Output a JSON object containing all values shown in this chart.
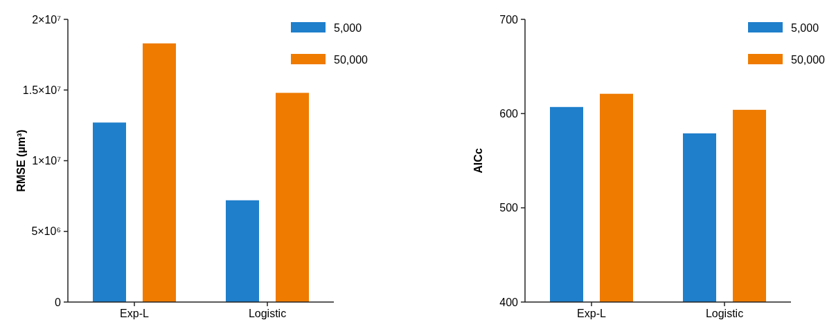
{
  "chart_data": [
    {
      "type": "bar",
      "ylabel": "RMSE (µm³)",
      "categories": [
        "Exp-L",
        "Logistic"
      ],
      "series": [
        {
          "name": "5,000",
          "color": "#1f7fcb",
          "values": [
            12700000,
            7200000
          ]
        },
        {
          "name": "50,000",
          "color": "#ef7b00",
          "values": [
            18300000,
            14800000
          ]
        }
      ],
      "ylim": [
        0,
        20000000
      ],
      "yticks": [
        0,
        {
          "value": 5000000,
          "label": "5×10⁶"
        },
        {
          "value": 10000000,
          "label": "1×10⁷"
        },
        {
          "value": 15000000,
          "label": "1.5×10⁷"
        },
        {
          "value": 20000000,
          "label": "2×10⁷"
        }
      ],
      "legend": "top right",
      "grid": false
    },
    {
      "type": "bar",
      "ylabel": "AICc",
      "categories": [
        "Exp-L",
        "Logistic"
      ],
      "series": [
        {
          "name": "5,000",
          "color": "#1f7fcb",
          "values": [
            607,
            579
          ]
        },
        {
          "name": "50,000",
          "color": "#ef7b00",
          "values": [
            621,
            604
          ]
        }
      ],
      "ylim": [
        400,
        700
      ],
      "yticks": [
        400,
        500,
        600,
        700
      ],
      "legend": "top right",
      "grid": false
    }
  ]
}
